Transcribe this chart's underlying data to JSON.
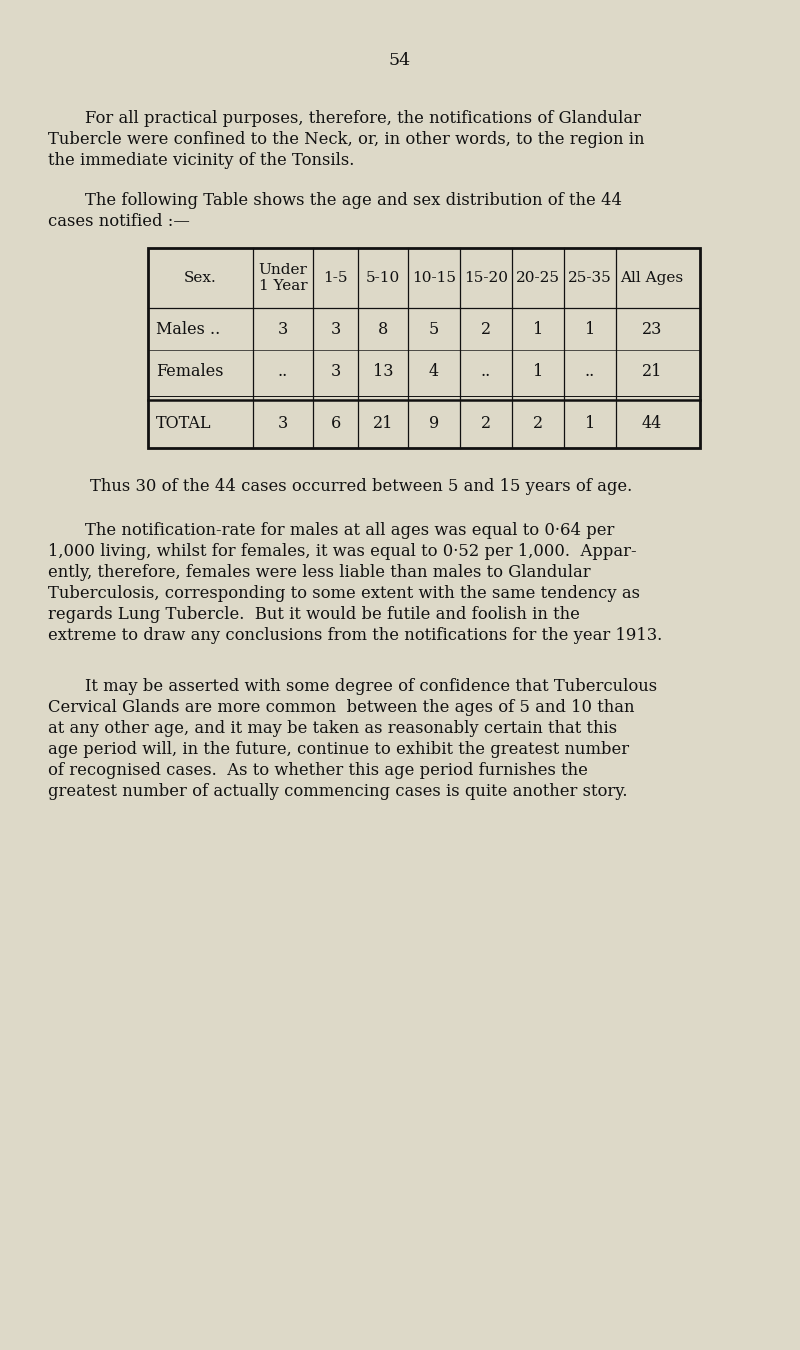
{
  "page_number": "54",
  "bg_color": "#ddd9c8",
  "text_color": "#111111",
  "lines_p1": [
    "For all practical purposes, therefore, the notifications of Glandular",
    "Tubercle were confined to the Neck, or, in other words, to the region in",
    "the immediate vicinity of the Tonsils."
  ],
  "lines_p2": [
    "The following Table shows the age and sex distribution of the 44",
    "cases notified :—"
  ],
  "table_headers": [
    "Sex.",
    "Under\n1 Year",
    "1-5",
    "5-10",
    "10-15",
    "15-20",
    "20-25",
    "25-35",
    "All Ages"
  ],
  "row_males_label": "Males ..",
  "row_males_values": [
    "3",
    "3",
    "8",
    "5",
    "2",
    "1",
    "1",
    "23"
  ],
  "row_females_label": "Females",
  "row_females_values": [
    "..",
    "3",
    "13",
    "4",
    "..",
    "1",
    "..",
    "21"
  ],
  "row_total_label": "TOTAL",
  "row_total_values": [
    "3",
    "6",
    "21",
    "9",
    "2",
    "2",
    "1",
    "44"
  ],
  "para3": "Thus 30 of the 44 cases occurred between 5 and 15 years of age.",
  "lines_p4": [
    "The notification-rate for males at all ages was equal to 0·64 per",
    "1,000 living, whilst for females, it was equal to 0·52 per 1,000.  Appar-",
    "ently, therefore, females were less liable than males to Glandular",
    "Tuberculosis, corresponding to some extent with the same tendency as",
    "regards Lung Tubercle.  But it would be futile and foolish in the",
    "extreme to draw any conclusions from the notifications for the year 1913."
  ],
  "lines_p5": [
    "It may be asserted with some degree of confidence that Tuberculous",
    "Cervical Glands are more common  between the ages of 5 and 10 than",
    "at any other age, and it may be taken as reasonably certain that this",
    "age period will, in the future, continue to exhibit the greatest number",
    "of recognised cases.  As to whether this age period furnishes the",
    "greatest number of actually commencing cases is quite another story."
  ]
}
